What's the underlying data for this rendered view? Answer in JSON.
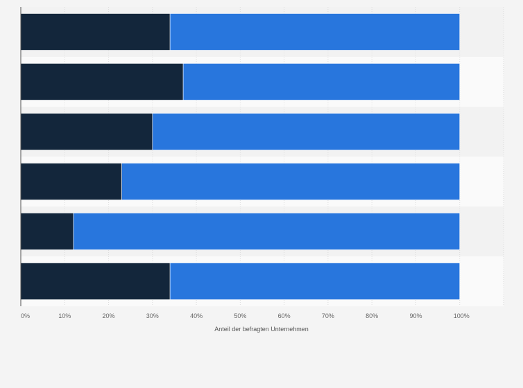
{
  "chart_data": {
    "type": "bar",
    "orientation": "horizontal",
    "stacked": true,
    "title": "",
    "xlabel": "Anteil der befragten Unternehmen",
    "ylabel": "",
    "xlim": [
      0,
      1.1
    ],
    "xticks": [
      {
        "value": 0.0,
        "label": "0%"
      },
      {
        "value": 0.1,
        "label": "10%"
      },
      {
        "value": 0.2,
        "label": "20%"
      },
      {
        "value": 0.3,
        "label": "30%"
      },
      {
        "value": 0.4,
        "label": "40%"
      },
      {
        "value": 0.5,
        "label": "50%"
      },
      {
        "value": 0.6,
        "label": "60%"
      },
      {
        "value": 0.7,
        "label": "70%"
      },
      {
        "value": 0.8,
        "label": "80%"
      },
      {
        "value": 0.9,
        "label": "90%"
      },
      {
        "value": 1.0,
        "label": "100%"
      }
    ],
    "categories": [
      "",
      "",
      "",
      "",
      "",
      ""
    ],
    "series": [
      {
        "color": "#13263b",
        "values": [
          0.34,
          0.37,
          0.3,
          0.23,
          0.12,
          0.34
        ]
      },
      {
        "color": "#2876dd",
        "values": [
          0.66,
          0.63,
          0.7,
          0.77,
          0.88,
          0.66
        ]
      }
    ],
    "grid": true,
    "legend": "none"
  }
}
